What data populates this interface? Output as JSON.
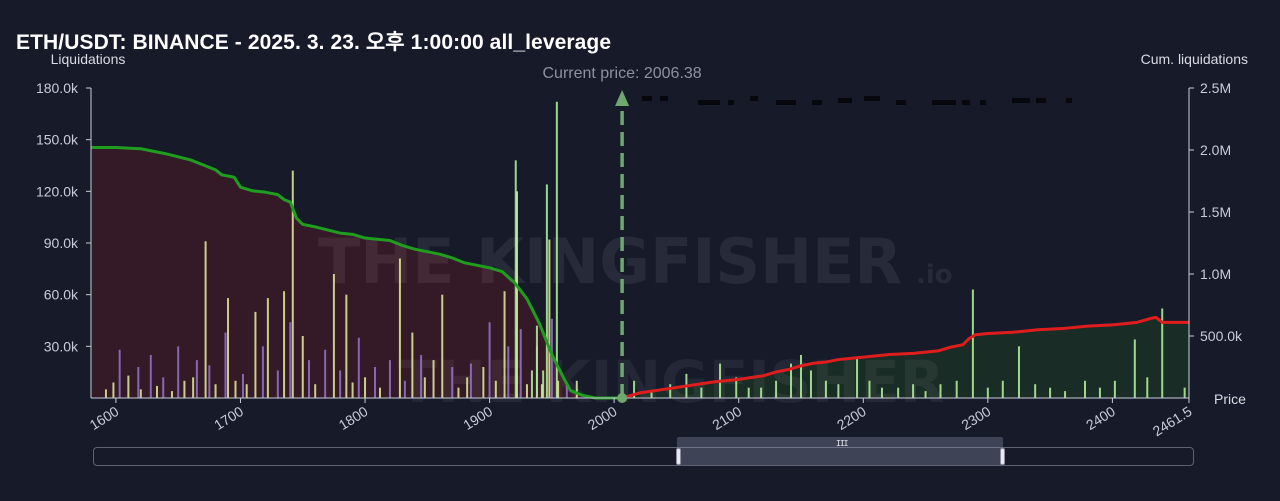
{
  "title": "ETH/USDT: BINANCE - 2025. 3. 23. 오후 1:00:00 all_leverage",
  "watermark": {
    "brand": "THE KINGFISHER",
    "suffix": ".io"
  },
  "colors": {
    "background": "#171a29",
    "short_liq_bars": "#e6ee9c",
    "long_liq_bars": "#9575cd",
    "above_price_bars": "#b9f6a0",
    "cum_long_line": "#1f9d1f",
    "cum_short_line": "#e01d1d",
    "cum_long_fill": "#3a1a26",
    "cum_short_fill": "#1b3324",
    "current_price_marker": "#6fa86f"
  },
  "chart_data": {
    "type": "bar",
    "x_axis": {
      "label": "Price",
      "range": [
        1580,
        2461.5
      ],
      "ticks": [
        "1600",
        "1700",
        "1800",
        "1900",
        "2000",
        "2100",
        "2200",
        "2300",
        "2400",
        "2461.5"
      ]
    },
    "y_left": {
      "label": "Liquidations",
      "range": [
        0,
        180000
      ],
      "ticks": [
        "30.0k",
        "60.0k",
        "90.0k",
        "120.0k",
        "150.0k",
        "180.0k"
      ]
    },
    "y_right": {
      "label": "Cum. liquidations",
      "range": [
        0,
        2500000
      ],
      "ticks": [
        "500.0k",
        "1.0M",
        "1.5M",
        "2.0M",
        "2.5M"
      ]
    },
    "current_price": {
      "label": "Current price: 2006.38",
      "value": 2006.38
    },
    "bar_series": [
      {
        "color_key": "long_liq_bars",
        "points": [
          [
            1603,
            28000
          ],
          [
            1618,
            18000
          ],
          [
            1628,
            25000
          ],
          [
            1638,
            12000
          ],
          [
            1650,
            30000
          ],
          [
            1665,
            22000
          ],
          [
            1675,
            19000
          ],
          [
            1688,
            38000
          ],
          [
            1702,
            14000
          ],
          [
            1718,
            30000
          ],
          [
            1730,
            16000
          ],
          [
            1740,
            44000
          ],
          [
            1755,
            22000
          ],
          [
            1768,
            28000
          ],
          [
            1780,
            16000
          ],
          [
            1795,
            35000
          ],
          [
            1808,
            18000
          ],
          [
            1820,
            22000
          ],
          [
            1832,
            10000
          ],
          [
            1845,
            25000
          ],
          [
            1870,
            18000
          ],
          [
            1885,
            20000
          ],
          [
            1900,
            44000
          ],
          [
            1915,
            30000
          ],
          [
            1925,
            40000
          ],
          [
            1938,
            30000
          ],
          [
            1950,
            46000
          ],
          [
            1962,
            9000
          ]
        ]
      },
      {
        "color_key": "short_liq_bars",
        "points": [
          [
            1592,
            5000
          ],
          [
            1598,
            9000
          ],
          [
            1610,
            13000
          ],
          [
            1620,
            5000
          ],
          [
            1633,
            7000
          ],
          [
            1645,
            4000
          ],
          [
            1655,
            10000
          ],
          [
            1662,
            12000
          ],
          [
            1672,
            91000
          ],
          [
            1680,
            8000
          ],
          [
            1690,
            58000
          ],
          [
            1696,
            10000
          ],
          [
            1705,
            8000
          ],
          [
            1712,
            50000
          ],
          [
            1722,
            58000
          ],
          [
            1735,
            62000
          ],
          [
            1742,
            132000
          ],
          [
            1750,
            36000
          ],
          [
            1760,
            8000
          ],
          [
            1775,
            72000
          ],
          [
            1785,
            60000
          ],
          [
            1790,
            9000
          ],
          [
            1800,
            12000
          ],
          [
            1812,
            6000
          ],
          [
            1828,
            81000
          ],
          [
            1838,
            38000
          ],
          [
            1848,
            12000
          ],
          [
            1855,
            22000
          ],
          [
            1862,
            60000
          ],
          [
            1875,
            6000
          ],
          [
            1882,
            12000
          ],
          [
            1895,
            18000
          ],
          [
            1905,
            10000
          ],
          [
            1912,
            62000
          ],
          [
            1922,
            120000
          ],
          [
            1930,
            8000
          ],
          [
            1942,
            8000
          ],
          [
            1948,
            92000
          ],
          [
            1955,
            10000
          ],
          [
            1970,
            10000
          ]
        ]
      },
      {
        "color_key": "above_price_bars",
        "points": [
          [
            1921,
            138000
          ],
          [
            1934,
            16000
          ],
          [
            1938,
            42000
          ],
          [
            1943,
            16000
          ],
          [
            1946,
            124000
          ],
          [
            1954,
            172000
          ],
          [
            2016,
            10000
          ],
          [
            2030,
            4000
          ],
          [
            2045,
            8000
          ],
          [
            2058,
            14000
          ],
          [
            2070,
            6000
          ],
          [
            2085,
            20000
          ],
          [
            2098,
            12000
          ],
          [
            2108,
            6000
          ],
          [
            2118,
            6000
          ],
          [
            2130,
            10000
          ],
          [
            2142,
            20000
          ],
          [
            2150,
            25000
          ],
          [
            2158,
            16000
          ],
          [
            2170,
            10000
          ],
          [
            2180,
            8000
          ],
          [
            2195,
            24000
          ],
          [
            2205,
            10000
          ],
          [
            2215,
            6000
          ],
          [
            2228,
            6000
          ],
          [
            2240,
            8000
          ],
          [
            2250,
            4000
          ],
          [
            2262,
            8000
          ],
          [
            2275,
            10000
          ],
          [
            2288,
            63000
          ],
          [
            2300,
            6000
          ],
          [
            2312,
            10000
          ],
          [
            2325,
            30000
          ],
          [
            2338,
            8000
          ],
          [
            2350,
            6000
          ],
          [
            2362,
            4000
          ],
          [
            2378,
            10000
          ],
          [
            2390,
            6000
          ],
          [
            2402,
            10000
          ],
          [
            2418,
            34000
          ],
          [
            2428,
            12000
          ],
          [
            2440,
            52000
          ],
          [
            2458,
            6000
          ]
        ]
      }
    ],
    "cumulative_series": [
      {
        "color_key": "cum_long_line",
        "x": [
          1580,
          1600,
          1620,
          1630,
          1640,
          1660,
          1670,
          1680,
          1685,
          1695,
          1700,
          1710,
          1720,
          1730,
          1735,
          1740,
          1745,
          1750,
          1760,
          1780,
          1790,
          1800,
          1820,
          1830,
          1840,
          1850,
          1860,
          1870,
          1880,
          1900,
          1910,
          1920,
          1930,
          1940,
          1950,
          1960,
          1965,
          1975,
          1985,
          2006.38
        ],
        "y": [
          2020000,
          2020000,
          2010000,
          1990000,
          1970000,
          1920000,
          1880000,
          1840000,
          1800000,
          1780000,
          1700000,
          1670000,
          1660000,
          1640000,
          1600000,
          1580000,
          1450000,
          1400000,
          1380000,
          1330000,
          1320000,
          1290000,
          1270000,
          1230000,
          1200000,
          1180000,
          1160000,
          1130000,
          1090000,
          1050000,
          1020000,
          930000,
          800000,
          600000,
          350000,
          150000,
          60000,
          20000,
          0,
          0
        ]
      },
      {
        "color_key": "cum_short_line",
        "x": [
          2006.38,
          2020,
          2040,
          2060,
          2080,
          2100,
          2120,
          2130,
          2140,
          2150,
          2160,
          2170,
          2180,
          2200,
          2220,
          2240,
          2260,
          2270,
          2280,
          2285,
          2290,
          2300,
          2320,
          2340,
          2360,
          2380,
          2400,
          2420,
          2430,
          2435,
          2440,
          2450,
          2460
        ],
        "y": [
          0,
          40000,
          70000,
          100000,
          130000,
          150000,
          180000,
          210000,
          230000,
          260000,
          280000,
          290000,
          310000,
          330000,
          350000,
          360000,
          380000,
          410000,
          430000,
          480000,
          510000,
          520000,
          530000,
          550000,
          560000,
          580000,
          590000,
          610000,
          640000,
          650000,
          610000,
          610000,
          610000
        ]
      }
    ],
    "legend": "none",
    "grid": false
  },
  "navigator": {
    "grip": "III"
  }
}
